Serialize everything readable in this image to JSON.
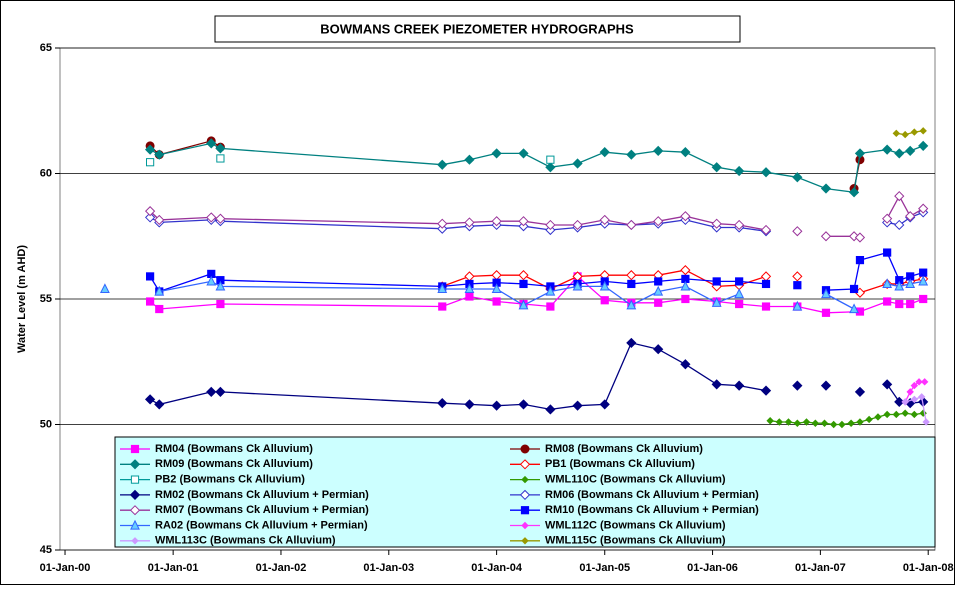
{
  "chart_data": {
    "type": "line",
    "title": "BOWMANS CREEK PIEZOMETER HYDROGRAPHS",
    "y_label": "Water Level (m AHD)",
    "xlim": [
      "1999-12-15",
      "2008-01-24"
    ],
    "xticks": [
      {
        "value": "2000-01-01",
        "label": "01-Jan-00"
      },
      {
        "value": "2001-01-01",
        "label": "01-Jan-01"
      },
      {
        "value": "2002-01-01",
        "label": "01-Jan-02"
      },
      {
        "value": "2003-01-01",
        "label": "01-Jan-03"
      },
      {
        "value": "2004-01-01",
        "label": "01-Jan-04"
      },
      {
        "value": "2005-01-01",
        "label": "01-Jan-05"
      },
      {
        "value": "2006-01-01",
        "label": "01-Jan-06"
      },
      {
        "value": "2007-01-01",
        "label": "01-Jan-07"
      },
      {
        "value": "2008-01-01",
        "label": "01-Jan-08"
      }
    ],
    "ylim": [
      45,
      65
    ],
    "yticks": [
      45,
      50,
      55,
      60,
      65
    ],
    "grid": true,
    "series": [
      {
        "name": "RM04 (Bowmans Ck Alluvium)",
        "color": "#ff00ff",
        "marker": "square",
        "filled": true,
        "line": true,
        "x": [
          "2000-10-15",
          "2000-11-15",
          "2001-06-10",
          "2003-07-01",
          "2003-10-01",
          "2004-01-01",
          "2004-04-01",
          "2004-07-01",
          "2004-10-01",
          "2005-01-01",
          "2005-04-01",
          "2005-07-01",
          "2005-10-01",
          "2006-01-15",
          "2006-04-01",
          "2006-07-01",
          "2006-10-15",
          "2007-01-20",
          "2007-05-15",
          "2007-08-15",
          "2007-09-25",
          "2007-11-01",
          "2007-12-15"
        ],
        "values": [
          54.9,
          54.6,
          54.8,
          54.7,
          55.1,
          54.9,
          54.8,
          54.7,
          55.9,
          54.95,
          54.85,
          54.85,
          55.0,
          54.9,
          54.8,
          54.7,
          54.7,
          54.45,
          54.5,
          54.9,
          54.8,
          54.8,
          55.0
        ]
      },
      {
        "name": "RM08 (Bowmans Ck Alluvium)",
        "color": "#800000",
        "marker": "circle",
        "filled": true,
        "line": true,
        "x": [
          "2000-10-15",
          "2000-11-15",
          "2001-05-10",
          "2001-06-10",
          "2004-01-01",
          "2007-04-25",
          "2007-05-15"
        ],
        "values": [
          61.1,
          60.75,
          61.3,
          61.05,
          null,
          59.4,
          60.55
        ]
      },
      {
        "name": "RM09 (Bowmans Ck Alluvium)",
        "color": "#008080",
        "marker": "diamond",
        "filled": true,
        "line": true,
        "x": [
          "2000-10-15",
          "2000-11-15",
          "2001-05-10",
          "2001-06-10",
          "2003-07-01",
          "2003-10-01",
          "2004-01-01",
          "2004-04-01",
          "2004-07-01",
          "2004-10-01",
          "2005-01-01",
          "2005-04-01",
          "2005-07-01",
          "2005-10-01",
          "2006-01-15",
          "2006-04-01",
          "2006-07-01",
          "2006-10-15",
          "2007-01-20",
          "2007-04-25",
          "2007-05-15",
          "2007-08-15",
          "2007-09-25",
          "2007-11-01",
          "2007-12-15"
        ],
        "values": [
          60.95,
          60.75,
          61.2,
          61.0,
          60.35,
          60.55,
          60.8,
          60.8,
          60.25,
          60.4,
          60.85,
          60.75,
          60.9,
          60.85,
          60.25,
          60.1,
          60.05,
          59.85,
          59.4,
          59.25,
          60.8,
          60.95,
          60.8,
          60.9,
          61.1
        ]
      },
      {
        "name": "PB1 (Bowmans Ck Alluvium)",
        "color": "#ff0000",
        "marker": "diamond",
        "filled": false,
        "line": true,
        "x": [
          "2003-07-01",
          "2003-10-01",
          "2004-01-01",
          "2004-04-01",
          "2004-07-01",
          "2004-10-01",
          "2005-01-01",
          "2005-04-01",
          "2005-07-01",
          "2005-10-01",
          "2006-01-15",
          "2006-04-01",
          "2006-07-01",
          "2006-08-15",
          "2006-10-15",
          "2007-01-01",
          "2007-05-15",
          "2007-08-15",
          "2007-09-25",
          "2007-11-01",
          "2007-12-15"
        ],
        "values": [
          55.5,
          55.9,
          55.95,
          55.95,
          55.4,
          55.9,
          55.95,
          55.95,
          55.95,
          56.15,
          55.5,
          55.55,
          55.9,
          null,
          55.9,
          null,
          55.25,
          55.6,
          55.6,
          55.7,
          55.8
        ]
      },
      {
        "name": "PB2 (Bowmans Ck Alluvium)",
        "color": "#009999",
        "marker": "square",
        "filled": false,
        "line": false,
        "x": [
          "2000-10-15",
          "2001-06-10",
          "2004-07-01"
        ],
        "values": [
          60.45,
          60.6,
          60.55
        ]
      },
      {
        "name": "WML110C (Bowmans Ck Alluvium)",
        "color": "#339900",
        "marker": "diamond",
        "filled": true,
        "small": true,
        "line": true,
        "x": [
          "2006-07-15",
          "2006-08-15",
          "2006-09-15",
          "2006-10-15",
          "2006-11-15",
          "2006-12-15",
          "2007-01-15",
          "2007-02-15",
          "2007-03-15",
          "2007-04-15",
          "2007-05-15",
          "2007-06-15",
          "2007-07-15",
          "2007-08-15",
          "2007-09-15",
          "2007-10-15",
          "2007-11-15",
          "2007-12-15"
        ],
        "values": [
          50.15,
          50.1,
          50.1,
          50.05,
          50.1,
          50.05,
          50.05,
          50.0,
          50.0,
          50.05,
          50.1,
          50.2,
          50.3,
          50.4,
          50.4,
          50.45,
          50.4,
          50.45
        ]
      },
      {
        "name": "RM02  (Bowmans Ck Alluvium + Permian)",
        "color": "#000080",
        "marker": "diamond",
        "filled": true,
        "line": true,
        "x": [
          "2000-10-15",
          "2000-11-15",
          "2001-05-10",
          "2001-06-10",
          "2003-07-01",
          "2003-10-01",
          "2004-01-01",
          "2004-04-01",
          "2004-07-01",
          "2004-10-01",
          "2005-01-01",
          "2005-04-01",
          "2005-07-01",
          "2005-10-01",
          "2006-01-15",
          "2006-04-01",
          "2006-07-01",
          "2006-08-15",
          "2006-10-15",
          "2006-12-01",
          "2007-01-20",
          "2007-03-15",
          "2007-05-15",
          "2007-07-01",
          "2007-08-15",
          "2007-09-25",
          "2007-11-01",
          "2007-12-15"
        ],
        "values": [
          51.0,
          50.8,
          51.3,
          51.3,
          50.85,
          50.8,
          50.75,
          50.8,
          50.6,
          50.75,
          50.8,
          53.25,
          53.0,
          52.4,
          51.6,
          51.55,
          51.35,
          null,
          51.55,
          null,
          51.55,
          null,
          51.3,
          null,
          51.6,
          50.9,
          50.85,
          50.9
        ]
      },
      {
        "name": "RM06 (Bowmans Ck Alluvium + Permian)",
        "color": "#3333cc",
        "marker": "diamond",
        "filled": false,
        "line": true,
        "x": [
          "2000-10-15",
          "2000-11-15",
          "2001-05-10",
          "2001-06-10",
          "2003-07-01",
          "2003-10-01",
          "2004-01-01",
          "2004-04-01",
          "2004-07-01",
          "2004-10-01",
          "2005-01-01",
          "2005-04-01",
          "2005-07-01",
          "2005-10-01",
          "2006-01-15",
          "2006-04-01",
          "2006-07-01",
          "2007-01-01",
          "2007-08-15",
          "2007-09-25",
          "2007-11-01",
          "2007-12-15"
        ],
        "values": [
          58.25,
          58.05,
          58.15,
          58.1,
          57.8,
          57.9,
          57.95,
          57.9,
          57.75,
          57.85,
          58.0,
          57.95,
          58.0,
          58.15,
          57.85,
          57.85,
          57.7,
          null,
          58.05,
          57.95,
          58.25,
          58.45
        ]
      },
      {
        "name": "RM07 (Bowmans Ck Alluvium + Permian)",
        "color": "#993399",
        "marker": "diamond",
        "filled": false,
        "line": true,
        "x": [
          "2000-10-15",
          "2000-11-15",
          "2001-05-10",
          "2001-06-10",
          "2003-07-01",
          "2003-10-01",
          "2004-01-01",
          "2004-04-01",
          "2004-07-01",
          "2004-10-01",
          "2005-01-01",
          "2005-04-01",
          "2005-07-01",
          "2005-10-01",
          "2006-01-15",
          "2006-04-01",
          "2006-07-01",
          "2006-08-15",
          "2006-10-15",
          "2006-12-01",
          "2007-01-20",
          "2007-04-25",
          "2007-05-15",
          "2007-07-01",
          "2007-08-15",
          "2007-09-25",
          "2007-11-01",
          "2007-12-15"
        ],
        "values": [
          58.5,
          58.15,
          58.25,
          58.2,
          58.0,
          58.05,
          58.1,
          58.1,
          57.95,
          57.95,
          58.15,
          57.95,
          58.1,
          58.3,
          58.0,
          57.95,
          57.75,
          null,
          57.7,
          null,
          57.5,
          57.5,
          57.45,
          null,
          58.2,
          59.1,
          58.3,
          58.6
        ]
      },
      {
        "name": "RM10 (Bowmans Ck Alluvium + Permian)",
        "color": "#0000ff",
        "marker": "square",
        "filled": true,
        "line": true,
        "x": [
          "2000-10-15",
          "2000-11-15",
          "2001-05-10",
          "2001-06-10",
          "2003-07-01",
          "2003-10-01",
          "2004-01-01",
          "2004-04-01",
          "2004-07-01",
          "2004-10-01",
          "2005-01-01",
          "2005-04-01",
          "2005-07-01",
          "2005-10-01",
          "2006-01-15",
          "2006-04-01",
          "2006-07-01",
          "2006-08-15",
          "2006-10-15",
          "2006-12-01",
          "2007-01-20",
          "2007-04-25",
          "2007-05-15",
          "2007-08-15",
          "2007-09-25",
          "2007-11-01",
          "2007-12-15"
        ],
        "values": [
          55.9,
          55.3,
          56.0,
          55.75,
          55.5,
          55.6,
          55.65,
          55.6,
          55.5,
          55.6,
          55.7,
          55.6,
          55.7,
          55.8,
          55.7,
          55.7,
          55.6,
          null,
          55.55,
          null,
          55.35,
          55.4,
          56.55,
          56.85,
          55.75,
          55.9,
          56.05
        ]
      },
      {
        "name": "RA02 (Bowmans Ck Alluvium + Permian)",
        "color": "#3366ff",
        "marker": "triangle",
        "filled": true,
        "fill": "#66ccff",
        "line": true,
        "x": [
          "2000-05-15",
          "2000-08-01",
          "2000-11-15",
          "2001-05-10",
          "2001-06-10",
          "2003-07-01",
          "2003-10-01",
          "2004-01-01",
          "2004-04-01",
          "2004-07-01",
          "2004-10-01",
          "2005-01-01",
          "2005-04-01",
          "2005-07-01",
          "2005-10-01",
          "2006-01-15",
          "2006-04-01",
          "2006-07-01",
          "2006-10-15",
          "2006-12-01",
          "2007-01-20",
          "2007-04-25",
          "2007-07-01",
          "2007-08-15",
          "2007-09-25",
          "2007-11-01",
          "2007-12-15"
        ],
        "values": [
          55.4,
          null,
          55.3,
          55.7,
          55.5,
          55.4,
          55.4,
          55.4,
          54.75,
          55.3,
          55.5,
          55.5,
          54.75,
          55.3,
          55.5,
          54.85,
          55.2,
          null,
          54.7,
          null,
          55.2,
          54.6,
          null,
          55.6,
          55.5,
          55.6,
          55.7
        ]
      },
      {
        "name": "WML112C (Bowmans Ck Alluvium)",
        "color": "#ff33ff",
        "marker": "diamond",
        "filled": true,
        "small": true,
        "line": true,
        "x": [
          "2007-10-15",
          "2007-11-01",
          "2007-11-15",
          "2007-12-01",
          "2007-12-20"
        ],
        "values": [
          50.9,
          51.3,
          51.55,
          51.7,
          51.7
        ]
      },
      {
        "name": "WML113C (Bowmans Ck Alluvium)",
        "color": "#cc99ff",
        "marker": "diamond",
        "filled": true,
        "small": true,
        "line": true,
        "x": [
          "2007-10-15",
          "2007-11-15",
          "2007-12-10",
          "2007-12-25"
        ],
        "values": [
          50.9,
          51.0,
          51.1,
          50.1
        ]
      },
      {
        "name": "WML115C (Bowmans Ck Alluvium)",
        "color": "#999900",
        "marker": "diamond",
        "filled": true,
        "small": true,
        "line": true,
        "x": [
          "2007-09-15",
          "2007-10-15",
          "2007-11-15",
          "2007-12-15"
        ],
        "values": [
          61.6,
          61.55,
          61.65,
          61.7
        ]
      }
    ]
  }
}
